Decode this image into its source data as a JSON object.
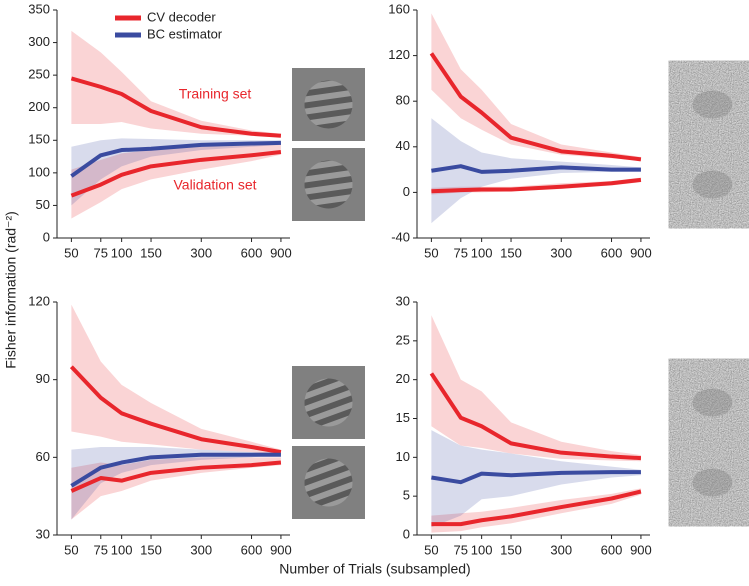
{
  "figure": {
    "ylabel": "Fisher information (rad⁻²)",
    "xlabel": "Number of Trials (subsampled)"
  },
  "chart_data": [
    {
      "type": "line",
      "xscale": "log",
      "x": [
        50,
        75,
        100,
        150,
        300,
        600,
        900
      ],
      "xlim": [
        41,
        1020
      ],
      "xticks": [
        50,
        75,
        100,
        150,
        300,
        600,
        900
      ],
      "ylim": [
        0,
        350
      ],
      "yticks": [
        0,
        50,
        100,
        150,
        200,
        250,
        300,
        350
      ],
      "legend": [
        {
          "name": "CV decoder",
          "color": "#e8262c"
        },
        {
          "name": "BC estimator",
          "color": "#3a4ba0"
        }
      ],
      "annotations": [
        "Training set",
        "Validation set"
      ],
      "series": [
        {
          "color": "#e8262c",
          "values": [
            245,
            232,
            221,
            195,
            170,
            160,
            157
          ],
          "lower": [
            175,
            175,
            178,
            168,
            160,
            157,
            155
          ],
          "upper": [
            318,
            285,
            255,
            210,
            180,
            165,
            160
          ]
        },
        {
          "color": "#e8262c",
          "values": [
            65,
            82,
            97,
            110,
            120,
            127,
            132
          ],
          "lower": [
            30,
            55,
            75,
            90,
            105,
            118,
            128
          ],
          "upper": [
            105,
            120,
            130,
            135,
            140,
            142,
            145
          ]
        },
        {
          "color": "#3a4ba0",
          "values": [
            95,
            127,
            135,
            137,
            143,
            145,
            146
          ],
          "lower": [
            50,
            90,
            110,
            125,
            135,
            140,
            143
          ],
          "upper": [
            140,
            150,
            153,
            152,
            150,
            150,
            150
          ]
        }
      ]
    },
    {
      "type": "line",
      "xscale": "log",
      "x": [
        50,
        75,
        100,
        150,
        300,
        600,
        900
      ],
      "xlim": [
        41,
        1020
      ],
      "xticks": [
        50,
        75,
        100,
        150,
        300,
        600,
        900
      ],
      "ylim": [
        -40,
        160
      ],
      "yticks": [
        -40,
        0,
        40,
        80,
        120,
        160
      ],
      "series": [
        {
          "color": "#e8262c",
          "values": [
            122,
            84,
            70,
            48,
            36,
            32,
            29
          ],
          "lower": [
            90,
            65,
            55,
            42,
            33,
            30,
            28
          ],
          "upper": [
            157,
            108,
            90,
            60,
            42,
            35,
            31
          ]
        },
        {
          "color": "#e8262c",
          "values": [
            1,
            2,
            2.5,
            2.5,
            5,
            8,
            11
          ],
          "lower": [
            -2,
            0,
            0,
            1,
            3,
            6,
            9
          ],
          "upper": [
            4,
            5,
            5,
            5,
            8,
            10,
            13
          ]
        },
        {
          "color": "#3a4ba0",
          "values": [
            19,
            23,
            18,
            19,
            22,
            20,
            20
          ],
          "lower": [
            -27,
            -5,
            5,
            12,
            17,
            18,
            18
          ],
          "upper": [
            65,
            45,
            35,
            30,
            27,
            24,
            22
          ]
        }
      ]
    },
    {
      "type": "line",
      "xscale": "log",
      "x": [
        50,
        75,
        100,
        150,
        300,
        600,
        900
      ],
      "xlim": [
        41,
        1020
      ],
      "xticks": [
        50,
        75,
        100,
        150,
        300,
        600,
        900
      ],
      "ylim": [
        30,
        120
      ],
      "yticks": [
        30,
        60,
        90,
        120
      ],
      "series": [
        {
          "color": "#e8262c",
          "values": [
            95,
            83,
            77,
            73,
            67,
            64,
            62
          ],
          "lower": [
            70,
            68,
            66,
            65,
            63,
            62,
            61
          ],
          "upper": [
            119,
            97,
            88,
            81,
            71,
            66,
            63
          ]
        },
        {
          "color": "#e8262c",
          "values": [
            47,
            52,
            51,
            54,
            56,
            57,
            58
          ],
          "lower": [
            36,
            45,
            47,
            51,
            54,
            56,
            57
          ],
          "upper": [
            56,
            58,
            57,
            59,
            60,
            60,
            60
          ]
        },
        {
          "color": "#3a4ba0",
          "values": [
            49,
            56,
            58,
            60,
            61,
            61,
            61
          ],
          "lower": [
            36,
            50,
            54,
            57,
            59,
            60,
            61
          ],
          "upper": [
            63,
            64,
            64,
            64,
            63,
            62,
            62
          ]
        }
      ]
    },
    {
      "type": "line",
      "xscale": "log",
      "x": [
        50,
        75,
        100,
        150,
        300,
        600,
        900
      ],
      "xlim": [
        41,
        1020
      ],
      "xticks": [
        50,
        75,
        100,
        150,
        300,
        600,
        900
      ],
      "ylim": [
        0,
        30
      ],
      "yticks": [
        0,
        5,
        10,
        15,
        20,
        25,
        30
      ],
      "series": [
        {
          "color": "#e8262c",
          "values": [
            20.8,
            15.1,
            14,
            11.8,
            10.6,
            10.1,
            9.9
          ],
          "lower": [
            14,
            11.5,
            11.2,
            10.5,
            9.8,
            9.6,
            9.5
          ],
          "upper": [
            28.3,
            20,
            18.5,
            14.5,
            12,
            10.8,
            10.3
          ]
        },
        {
          "color": "#e8262c",
          "values": [
            1.4,
            1.4,
            1.9,
            2.4,
            3.6,
            4.7,
            5.6
          ],
          "lower": [
            0.3,
            0.5,
            1,
            1.5,
            2.8,
            4,
            5.2
          ],
          "upper": [
            2.5,
            2.8,
            3,
            3.5,
            4.5,
            5.3,
            6
          ]
        },
        {
          "color": "#3a4ba0",
          "values": [
            7.4,
            6.8,
            7.9,
            7.7,
            8,
            8.1,
            8.1
          ],
          "lower": [
            1,
            2.5,
            4.6,
            5,
            6.5,
            7.4,
            7.7
          ],
          "upper": [
            13.5,
            11.5,
            11,
            10.5,
            9.5,
            8.8,
            8.4
          ]
        }
      ]
    }
  ]
}
